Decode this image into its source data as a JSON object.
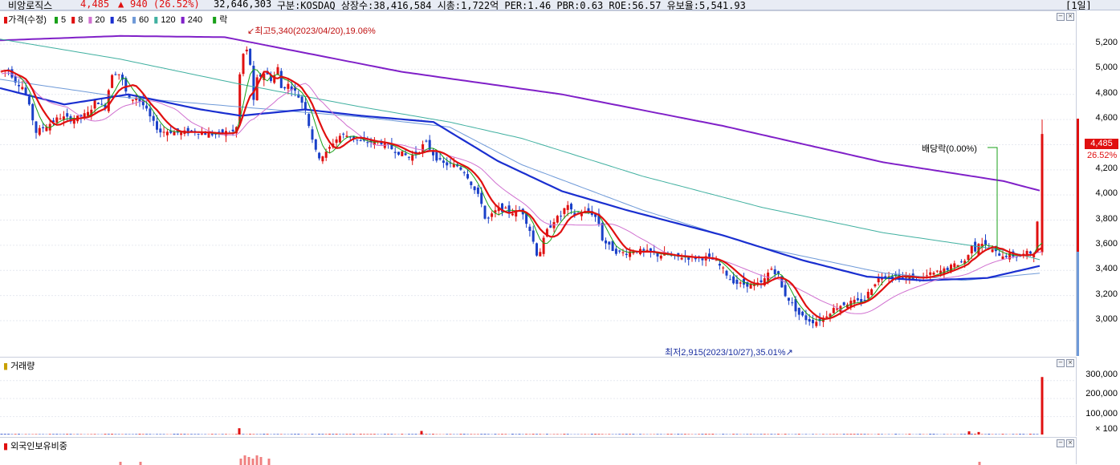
{
  "topbar": {
    "name": "비앙로직스",
    "price": "4,485",
    "change_arrow": "▲",
    "change": "940  (26.52%)",
    "volume": "32,646,303",
    "info": "구분:KOSDAQ  상장수:38,416,584  시총:1,722억  PER:1.46  PBR:0.63  ROE:56.57  유보율:5,541.93",
    "period": "[1일]"
  },
  "legend": {
    "price_label": "가격(수정)",
    "ma": [
      {
        "label": "5",
        "color": "#18a018"
      },
      {
        "label": "8",
        "color": "#e01010"
      },
      {
        "label": "20",
        "color": "#d070d0"
      },
      {
        "label": "45",
        "color": "#1a2fd0"
      },
      {
        "label": "60",
        "color": "#6f9ad8"
      },
      {
        "label": "120",
        "color": "#40b0a0"
      },
      {
        "label": "240",
        "color": "#8020c8"
      }
    ],
    "ex_label": "락"
  },
  "annotations": {
    "high": "최고5,340(2023/04/20),19.06%",
    "low": "최저2,915(2023/10/27),35.01%",
    "dividend": "배당락(0.00%)"
  },
  "volume_panel": {
    "title": "거래량",
    "ticks": [
      "300,000",
      "200,000",
      "100,000",
      "× 100"
    ]
  },
  "foreign_panel": {
    "title": "외국인보유비중"
  },
  "current_price": {
    "price": "4,485",
    "pct": "26.52%"
  },
  "chart_data": {
    "type": "candlestick",
    "title": "가격(수정)",
    "ylim": [
      2800,
      5300
    ],
    "yticks": [
      3000,
      3200,
      3400,
      3600,
      3800,
      4000,
      4200,
      4400,
      4600,
      4800,
      5000,
      5200
    ],
    "ytick_labels": [
      "3,000",
      "3,200",
      "3,400",
      "3,600",
      "3,800",
      "4,000",
      "4,200",
      "4,400",
      "4,600",
      "4,800",
      "5,000",
      "5,200"
    ],
    "close_keypoints": [
      [
        0,
        4980
      ],
      [
        10,
        5000
      ],
      [
        20,
        4900
      ],
      [
        30,
        4850
      ],
      [
        45,
        4500
      ],
      [
        60,
        4560
      ],
      [
        75,
        4620
      ],
      [
        90,
        4600
      ],
      [
        100,
        4620
      ],
      [
        110,
        4650
      ],
      [
        120,
        4760
      ],
      [
        130,
        4680
      ],
      [
        140,
        4980
      ],
      [
        150,
        4960
      ],
      [
        160,
        4750
      ],
      [
        170,
        4780
      ],
      [
        180,
        4700
      ],
      [
        190,
        4580
      ],
      [
        200,
        4500
      ],
      [
        210,
        4510
      ],
      [
        225,
        4490
      ],
      [
        240,
        4510
      ],
      [
        255,
        4490
      ],
      [
        270,
        4480
      ],
      [
        280,
        4500
      ],
      [
        290,
        4500
      ],
      [
        296,
        4550
      ],
      [
        300,
        5150
      ],
      [
        305,
        5100
      ],
      [
        310,
        5200
      ],
      [
        315,
        4700
      ],
      [
        320,
        4920
      ],
      [
        330,
        4980
      ],
      [
        340,
        4900
      ],
      [
        345,
        5050
      ],
      [
        350,
        4850
      ],
      [
        360,
        4880
      ],
      [
        370,
        4800
      ],
      [
        380,
        4700
      ],
      [
        385,
        4550
      ],
      [
        395,
        4300
      ],
      [
        405,
        4320
      ],
      [
        415,
        4420
      ],
      [
        425,
        4480
      ],
      [
        435,
        4470
      ],
      [
        450,
        4420
      ],
      [
        460,
        4420
      ],
      [
        475,
        4420
      ],
      [
        490,
        4360
      ],
      [
        500,
        4330
      ],
      [
        510,
        4300
      ],
      [
        520,
        4340
      ],
      [
        530,
        4420
      ],
      [
        540,
        4320
      ],
      [
        550,
        4250
      ],
      [
        560,
        4240
      ],
      [
        570,
        4230
      ],
      [
        580,
        4180
      ],
      [
        590,
        4050
      ],
      [
        600,
        3940
      ],
      [
        605,
        3780
      ],
      [
        610,
        3820
      ],
      [
        620,
        3890
      ],
      [
        630,
        3880
      ],
      [
        640,
        3860
      ],
      [
        650,
        3880
      ],
      [
        660,
        3720
      ],
      [
        670,
        3500
      ],
      [
        680,
        3700
      ],
      [
        690,
        3800
      ],
      [
        700,
        3840
      ],
      [
        705,
        3920
      ],
      [
        715,
        3840
      ],
      [
        725,
        3860
      ],
      [
        735,
        3870
      ],
      [
        745,
        3800
      ],
      [
        750,
        3650
      ],
      [
        760,
        3580
      ],
      [
        770,
        3540
      ],
      [
        780,
        3540
      ],
      [
        790,
        3560
      ],
      [
        800,
        3550
      ],
      [
        810,
        3540
      ],
      [
        820,
        3520
      ],
      [
        830,
        3530
      ],
      [
        840,
        3500
      ],
      [
        850,
        3510
      ],
      [
        860,
        3500
      ],
      [
        870,
        3500
      ],
      [
        880,
        3500
      ],
      [
        890,
        3480
      ],
      [
        900,
        3410
      ],
      [
        910,
        3330
      ],
      [
        920,
        3290
      ],
      [
        930,
        3290
      ],
      [
        940,
        3280
      ],
      [
        950,
        3300
      ],
      [
        960,
        3420
      ],
      [
        970,
        3360
      ],
      [
        975,
        3230
      ],
      [
        985,
        3150
      ],
      [
        995,
        3050
      ],
      [
        1005,
        3010
      ],
      [
        1015,
        2990
      ],
      [
        1025,
        3020
      ],
      [
        1035,
        3080
      ],
      [
        1045,
        3120
      ],
      [
        1055,
        3140
      ],
      [
        1065,
        3150
      ],
      [
        1075,
        3150
      ],
      [
        1085,
        3260
      ],
      [
        1095,
        3350
      ],
      [
        1105,
        3370
      ],
      [
        1115,
        3350
      ],
      [
        1125,
        3340
      ],
      [
        1135,
        3350
      ],
      [
        1145,
        3330
      ],
      [
        1155,
        3360
      ],
      [
        1165,
        3380
      ],
      [
        1175,
        3400
      ],
      [
        1185,
        3430
      ],
      [
        1195,
        3460
      ],
      [
        1205,
        3490
      ],
      [
        1210,
        3620
      ],
      [
        1215,
        3560
      ],
      [
        1220,
        3640
      ],
      [
        1230,
        3580
      ],
      [
        1240,
        3540
      ],
      [
        1250,
        3520
      ],
      [
        1260,
        3520
      ],
      [
        1270,
        3510
      ],
      [
        1280,
        3540
      ],
      [
        1290,
        3540
      ],
      [
        1298,
        4485
      ]
    ],
    "ma240_keypoints": [
      [
        0,
        5230
      ],
      [
        150,
        5265
      ],
      [
        280,
        5255
      ],
      [
        380,
        5130
      ],
      [
        500,
        4980
      ],
      [
        700,
        4800
      ],
      [
        900,
        4550
      ],
      [
        1100,
        4260
      ],
      [
        1250,
        4110
      ],
      [
        1298,
        4030
      ]
    ],
    "ma120_keypoints": [
      [
        0,
        5240
      ],
      [
        150,
        5080
      ],
      [
        300,
        4880
      ],
      [
        450,
        4700
      ],
      [
        560,
        4580
      ],
      [
        650,
        4450
      ],
      [
        800,
        4150
      ],
      [
        950,
        3900
      ],
      [
        1100,
        3700
      ],
      [
        1250,
        3560
      ],
      [
        1298,
        3480
      ]
    ],
    "ma60_keypoints": [
      [
        0,
        4920
      ],
      [
        150,
        4780
      ],
      [
        300,
        4700
      ],
      [
        450,
        4620
      ],
      [
        560,
        4540
      ],
      [
        650,
        4240
      ],
      [
        800,
        3880
      ],
      [
        950,
        3580
      ],
      [
        1100,
        3380
      ],
      [
        1200,
        3320
      ],
      [
        1298,
        3380
      ]
    ],
    "ma45_keypoints": [
      [
        0,
        4850
      ],
      [
        80,
        4720
      ],
      [
        160,
        4800
      ],
      [
        250,
        4680
      ],
      [
        300,
        4630
      ],
      [
        380,
        4680
      ],
      [
        450,
        4630
      ],
      [
        540,
        4580
      ],
      [
        620,
        4270
      ],
      [
        700,
        4030
      ],
      [
        780,
        3880
      ],
      [
        900,
        3680
      ],
      [
        1000,
        3480
      ],
      [
        1080,
        3350
      ],
      [
        1150,
        3320
      ],
      [
        1230,
        3340
      ],
      [
        1298,
        3440
      ]
    ],
    "volume_spikes": [
      [
        298,
        35
      ],
      [
        525,
        20
      ],
      [
        1207,
        18
      ],
      [
        1219,
        14
      ],
      [
        1298,
        320
      ]
    ],
    "markers": {
      "high_x": 310,
      "low_x": 1012,
      "dividend_x": 1242
    }
  }
}
